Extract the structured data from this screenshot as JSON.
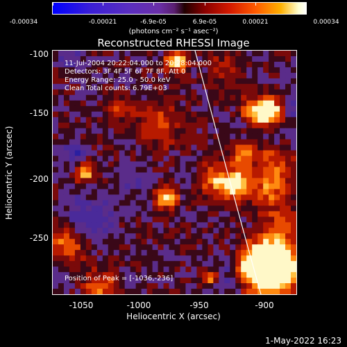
{
  "colorbar": {
    "labels": [
      "-0.00034",
      "-0.00021",
      "-6.9e-05",
      "6.9e-05",
      "0.00021",
      "0.00034"
    ],
    "units": "(photons cm⁻² s⁻¹ asec⁻²)"
  },
  "title": "Reconstructed RHESSI Image",
  "info": {
    "line1": "11-Jul-2004 20:22:04.000 to 20:28:04.000",
    "line2": "Detectors: 3F 4F 5F 6F 7F 8F, Att 0",
    "line3": "Energy Range: 25.0 - 50.0 keV",
    "line4": "Clean    Total counts: 6.79E+03",
    "peak": "Position of Peak = [-1036,-236]"
  },
  "axes": {
    "xlabel": "Heliocentric X (arcsec)",
    "ylabel": "Heliocentric Y (arcsec)",
    "xticks": [
      "-1050",
      "-1000",
      "-950",
      "-900"
    ],
    "yticks": [
      "-100",
      "-150",
      "-200",
      "-250"
    ]
  },
  "timestamp": "1-May-2022 16:23"
}
